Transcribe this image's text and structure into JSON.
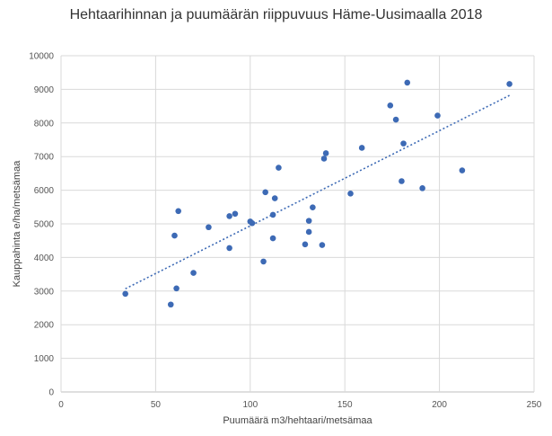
{
  "chart_data": {
    "type": "scatter",
    "title": "Hehtaarihinnan ja puumäärän riippuvuus Häme-Uusimaalla 2018",
    "xlabel": "Puumäärä m3/hehtaari/metsämaa",
    "ylabel": "Kauppahinta e/ha/metsämaa",
    "xlim": [
      0,
      250
    ],
    "ylim": [
      0,
      10000
    ],
    "x_ticks": [
      0,
      50,
      100,
      150,
      200,
      250
    ],
    "y_ticks": [
      0,
      1000,
      2000,
      3000,
      4000,
      5000,
      6000,
      7000,
      8000,
      9000,
      10000
    ],
    "grid": true,
    "legend": "none",
    "marker_color": "#3d6ab5",
    "trendline": {
      "type": "linear",
      "style": "dotted",
      "color": "#3d6ab5",
      "from": [
        34,
        3070
      ],
      "to": [
        237,
        8820
      ]
    },
    "points": [
      {
        "x": 34,
        "y": 2920
      },
      {
        "x": 58,
        "y": 2600
      },
      {
        "x": 60,
        "y": 4650
      },
      {
        "x": 61,
        "y": 3080
      },
      {
        "x": 62,
        "y": 5380
      },
      {
        "x": 70,
        "y": 3540
      },
      {
        "x": 78,
        "y": 4900
      },
      {
        "x": 89,
        "y": 5230
      },
      {
        "x": 89,
        "y": 4280
      },
      {
        "x": 92,
        "y": 5300
      },
      {
        "x": 100,
        "y": 5070
      },
      {
        "x": 101,
        "y": 5020
      },
      {
        "x": 107,
        "y": 3880
      },
      {
        "x": 108,
        "y": 5940
      },
      {
        "x": 112,
        "y": 5270
      },
      {
        "x": 112,
        "y": 4570
      },
      {
        "x": 113,
        "y": 5760
      },
      {
        "x": 115,
        "y": 6670
      },
      {
        "x": 129,
        "y": 4390
      },
      {
        "x": 131,
        "y": 5090
      },
      {
        "x": 131,
        "y": 4760
      },
      {
        "x": 133,
        "y": 5490
      },
      {
        "x": 138,
        "y": 4370
      },
      {
        "x": 139,
        "y": 6940
      },
      {
        "x": 140,
        "y": 7100
      },
      {
        "x": 153,
        "y": 5900
      },
      {
        "x": 159,
        "y": 7260
      },
      {
        "x": 174,
        "y": 8520
      },
      {
        "x": 177,
        "y": 8100
      },
      {
        "x": 180,
        "y": 6270
      },
      {
        "x": 181,
        "y": 7390
      },
      {
        "x": 183,
        "y": 9200
      },
      {
        "x": 191,
        "y": 6060
      },
      {
        "x": 199,
        "y": 8220
      },
      {
        "x": 212,
        "y": 6590
      },
      {
        "x": 237,
        "y": 9160
      }
    ]
  }
}
